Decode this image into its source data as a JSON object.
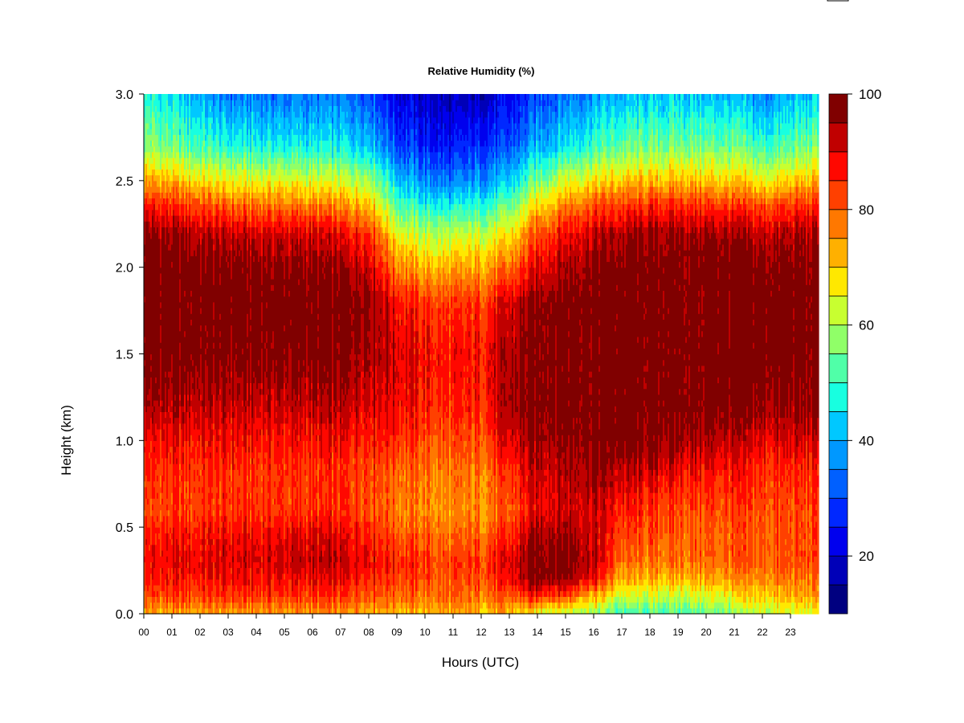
{
  "chart_data": {
    "type": "heatmap",
    "title": "Relative Humidity (%)",
    "xlabel": "Hours (UTC)",
    "ylabel": "Height (km)",
    "x_tick_labels": [
      "00",
      "01",
      "02",
      "03",
      "04",
      "05",
      "06",
      "07",
      "08",
      "09",
      "10",
      "11",
      "12",
      "13",
      "14",
      "15",
      "16",
      "17",
      "18",
      "19",
      "20",
      "21",
      "22",
      "23"
    ],
    "y_tick_labels": [
      "0.0",
      "0.5",
      "1.0",
      "1.5",
      "2.0",
      "2.5",
      "3.0"
    ],
    "xlim": [
      0,
      24
    ],
    "ylim": [
      0,
      3
    ],
    "colorbar": {
      "range": [
        10,
        100
      ],
      "levels": [
        10,
        15,
        20,
        25,
        30,
        35,
        40,
        45,
        50,
        55,
        60,
        65,
        70,
        75,
        80,
        85,
        90,
        95,
        100
      ],
      "tick_labels": [
        "20",
        "40",
        "60",
        "80",
        "100"
      ],
      "colors": [
        "#000080",
        "#0000B8",
        "#0000EE",
        "#0028FF",
        "#0060FF",
        "#0098FF",
        "#00C8FF",
        "#18FFE0",
        "#50FFA8",
        "#90FF68",
        "#C8FF30",
        "#FFE800",
        "#FFB000",
        "#FF7800",
        "#FF4000",
        "#FF0800",
        "#C00000",
        "#800000"
      ]
    },
    "profile_heights_km": [
      0.0,
      0.1,
      0.2,
      0.3,
      0.45,
      0.6,
      0.8,
      1.0,
      1.2,
      1.5,
      1.8,
      2.0,
      2.2,
      2.35,
      2.5,
      2.7,
      3.0
    ],
    "profiles": [
      {
        "hour": 0,
        "rh": [
          72,
          82,
          86,
          88,
          86,
          82,
          84,
          88,
          94,
          99,
          99,
          99,
          96,
          88,
          74,
          58,
          48
        ]
      },
      {
        "hour": 3,
        "rh": [
          74,
          84,
          88,
          90,
          88,
          84,
          84,
          88,
          92,
          98,
          99,
          98,
          92,
          80,
          66,
          48,
          34
        ]
      },
      {
        "hour": 6,
        "rh": [
          74,
          84,
          88,
          92,
          90,
          84,
          83,
          87,
          92,
          98,
          99,
          96,
          90,
          78,
          64,
          46,
          34
        ]
      },
      {
        "hour": 8,
        "rh": [
          74,
          83,
          87,
          91,
          88,
          84,
          84,
          88,
          92,
          97,
          98,
          94,
          86,
          74,
          62,
          44,
          32
        ]
      },
      {
        "hour": 9,
        "rh": [
          73,
          80,
          84,
          86,
          82,
          78,
          80,
          86,
          90,
          92,
          88,
          78,
          66,
          54,
          44,
          30,
          22
        ]
      },
      {
        "hour": 10,
        "rh": [
          72,
          78,
          82,
          84,
          80,
          76,
          78,
          82,
          86,
          88,
          84,
          72,
          60,
          48,
          36,
          26,
          18
        ]
      },
      {
        "hour": 11,
        "rh": [
          72,
          78,
          80,
          82,
          78,
          74,
          76,
          80,
          84,
          86,
          82,
          72,
          60,
          46,
          34,
          24,
          16
        ]
      },
      {
        "hour": 12,
        "rh": [
          72,
          79,
          82,
          84,
          80,
          76,
          78,
          82,
          86,
          88,
          84,
          74,
          62,
          50,
          38,
          28,
          18
        ]
      },
      {
        "hour": 13,
        "rh": [
          70,
          80,
          88,
          90,
          84,
          80,
          84,
          90,
          94,
          94,
          90,
          78,
          66,
          54,
          42,
          30,
          22
        ]
      },
      {
        "hour": 14,
        "rh": [
          64,
          86,
          98,
          99,
          96,
          90,
          92,
          96,
          99,
          99,
          98,
          90,
          82,
          70,
          56,
          40,
          30
        ]
      },
      {
        "hour": 15,
        "rh": [
          62,
          82,
          97,
          99,
          97,
          92,
          94,
          97,
          99,
          99,
          99,
          95,
          88,
          78,
          64,
          46,
          34
        ]
      },
      {
        "hour": 16,
        "rh": [
          58,
          72,
          88,
          94,
          92,
          92,
          96,
          99,
          99,
          99,
          99,
          98,
          92,
          82,
          68,
          50,
          38
        ]
      },
      {
        "hour": 17,
        "rh": [
          50,
          62,
          72,
          78,
          82,
          86,
          92,
          99,
          99,
          99,
          99,
          98,
          94,
          84,
          70,
          54,
          40
        ]
      },
      {
        "hour": 19,
        "rh": [
          52,
          62,
          72,
          78,
          80,
          82,
          88,
          96,
          99,
          99,
          99,
          99,
          96,
          86,
          72,
          56,
          42
        ]
      },
      {
        "hour": 21,
        "rh": [
          56,
          66,
          74,
          80,
          80,
          82,
          86,
          92,
          98,
          99,
          99,
          99,
          94,
          84,
          70,
          54,
          40
        ]
      },
      {
        "hour": 22,
        "rh": [
          60,
          70,
          76,
          80,
          80,
          82,
          84,
          90,
          96,
          99,
          99,
          98,
          92,
          82,
          66,
          50,
          36
        ]
      },
      {
        "hour": 24,
        "rh": [
          64,
          74,
          78,
          82,
          82,
          82,
          84,
          90,
          96,
          99,
          99,
          98,
          94,
          86,
          72,
          56,
          42
        ]
      }
    ],
    "grid": false,
    "legend": "colorbar-right"
  }
}
